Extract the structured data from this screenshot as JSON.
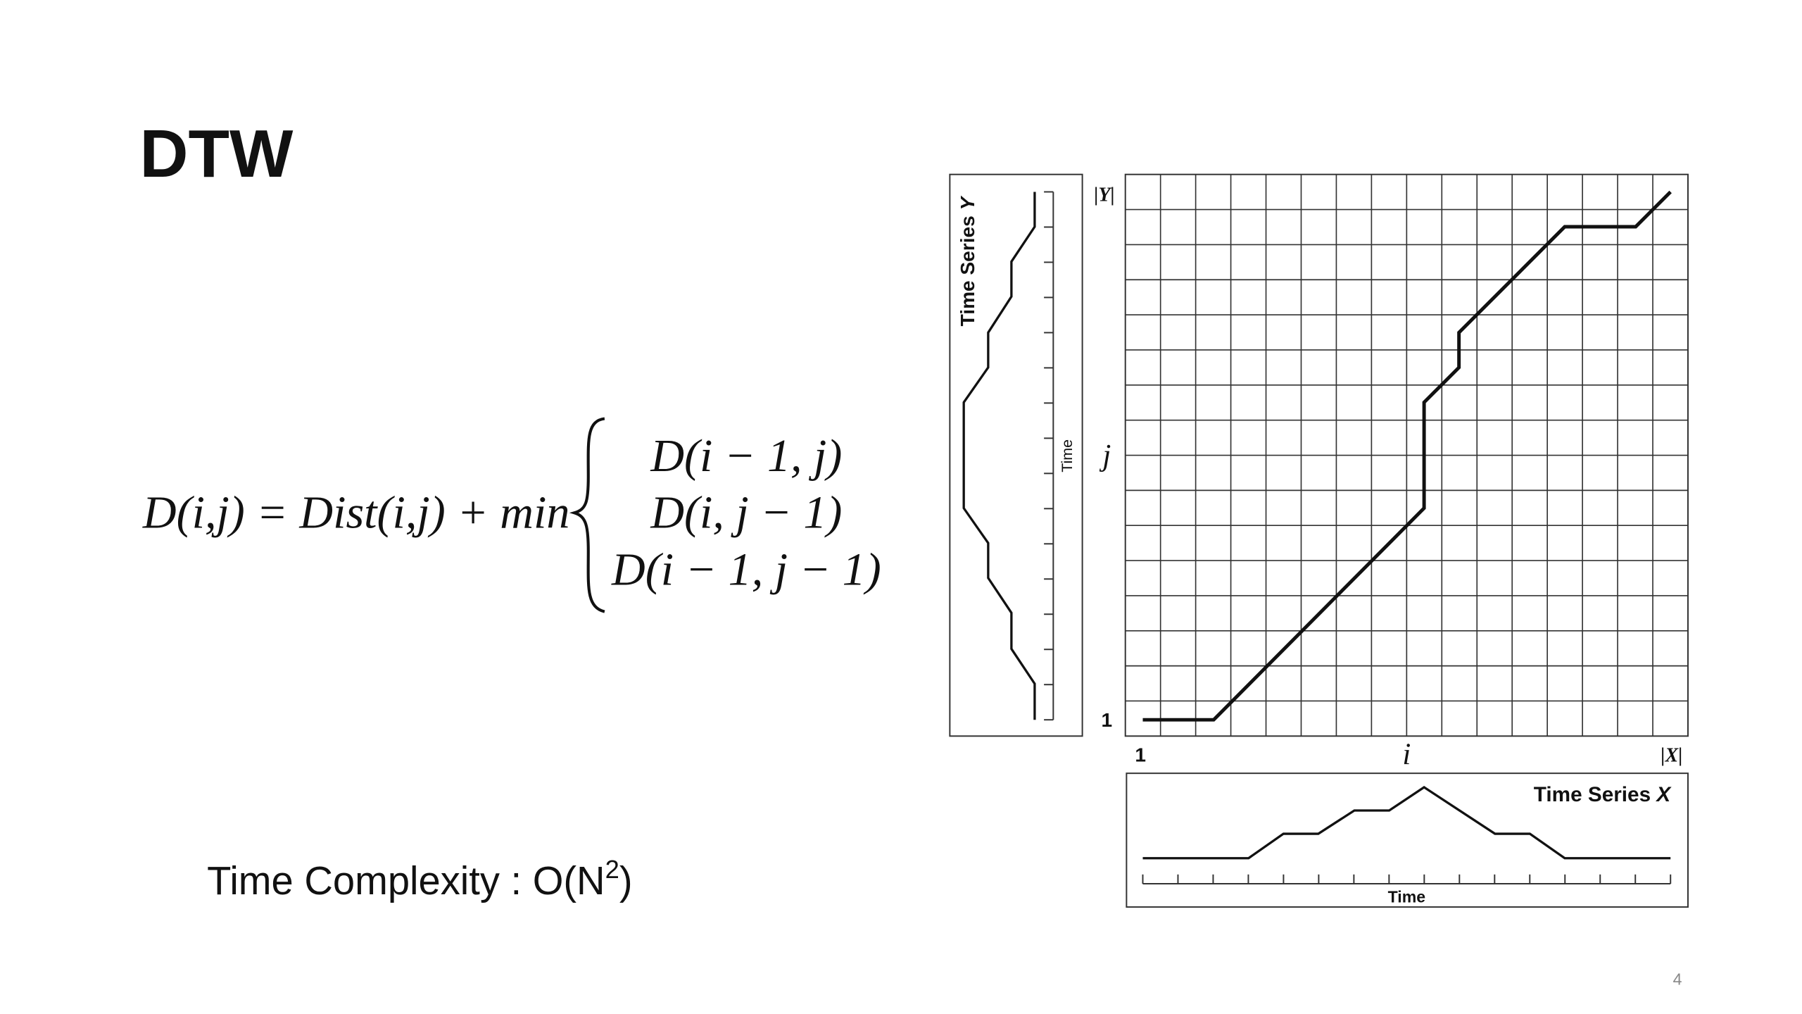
{
  "title": "DTW",
  "formula": {
    "lhs": "D(i,j) = Dist(i,j) + min",
    "cases": [
      "D(i − 1, j)",
      "D(i, j − 1)",
      "D(i − 1, j − 1)"
    ]
  },
  "complexity": {
    "text": "Time Complexity : O(N",
    "sup": "2",
    "close": ")"
  },
  "figure": {
    "y_series_title": "Time Series ",
    "y_series_var": "Y",
    "y_time": "Time",
    "y_max": "|Y|",
    "y_index": "j",
    "y_min": "1",
    "x_min": "1",
    "x_index": "i",
    "x_max": "|X|",
    "x_series_title": "Time Series ",
    "x_series_var": "X",
    "x_time": "Time"
  },
  "page_number": "4"
}
